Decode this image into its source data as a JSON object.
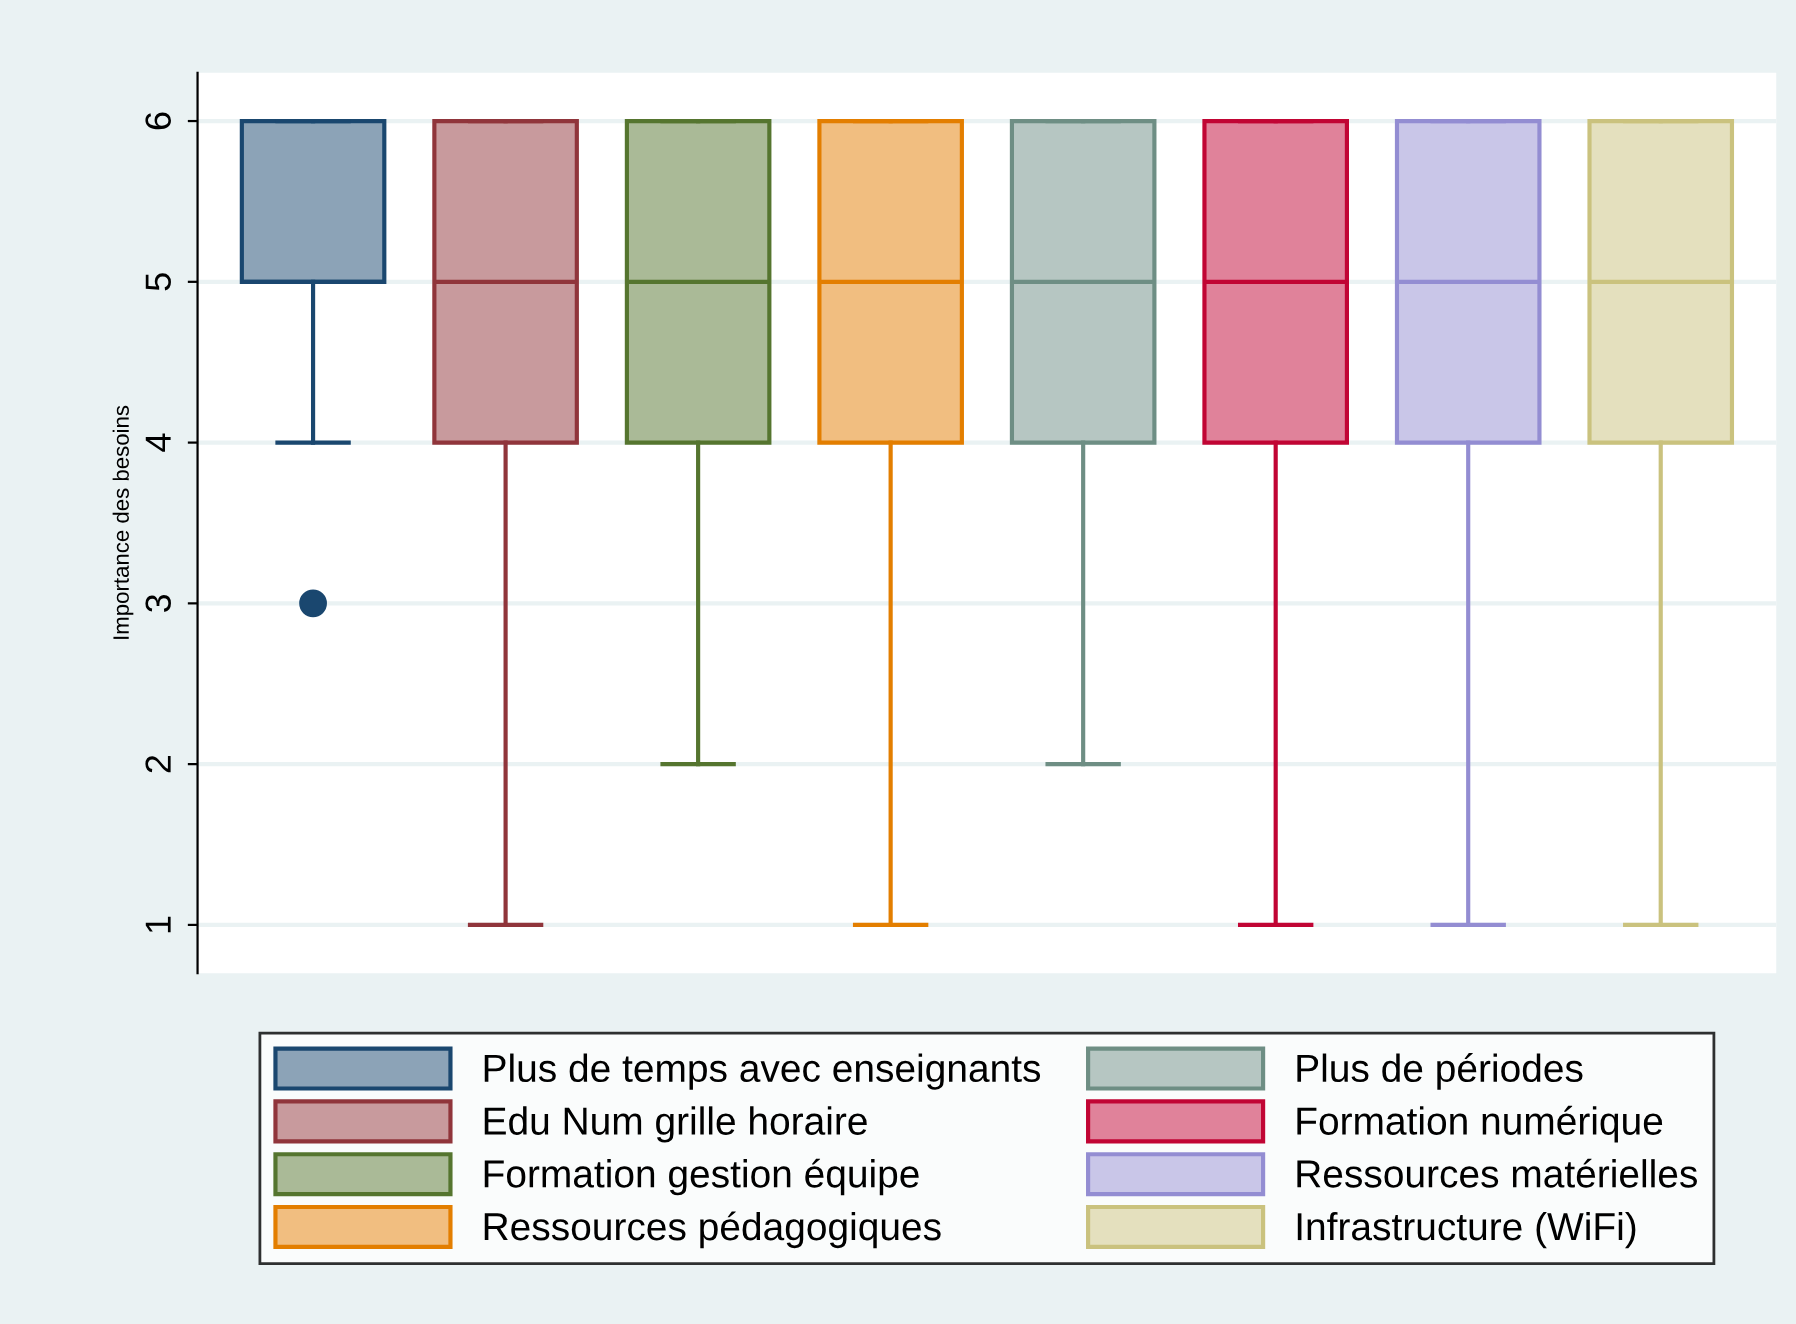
{
  "chart_data": {
    "type": "box",
    "ylabel": "Importance des besoins",
    "categories": [
      null,
      null,
      null,
      null,
      null,
      null,
      null,
      null
    ],
    "ylim": [
      0.7,
      6.3
    ],
    "yticks": [
      1,
      2,
      3,
      4,
      5,
      6
    ],
    "grid": "y",
    "legend": "bottom",
    "series": [
      {
        "name": "Plus de temps avec enseignants",
        "color": "#1a476f",
        "boxes": [
          {
            "low": 4,
            "q1": 5,
            "median": 5,
            "q3": 6,
            "high": 6,
            "outliers": [
              3
            ]
          },
          null,
          null,
          null,
          null,
          null,
          null,
          null
        ]
      },
      {
        "name": "Edu Num grille horaire",
        "color": "#90353b",
        "boxes": [
          null,
          {
            "low": 1,
            "q1": 4,
            "median": 5,
            "q3": 6,
            "high": 6
          },
          null,
          null,
          null,
          null,
          null,
          null
        ]
      },
      {
        "name": "Formation gestion équipe",
        "color": "#55752f",
        "boxes": [
          null,
          null,
          {
            "low": 2,
            "q1": 4,
            "median": 5,
            "q3": 6,
            "high": 6
          },
          null,
          null,
          null,
          null,
          null
        ]
      },
      {
        "name": "Ressources pédagogiques",
        "color": "#e37e00",
        "boxes": [
          null,
          null,
          null,
          {
            "low": 1,
            "q1": 4,
            "median": 5,
            "q3": 6,
            "high": 6
          },
          null,
          null,
          null,
          null
        ]
      },
      {
        "name": "Plus de périodes",
        "color": "#6e8e84",
        "boxes": [
          null,
          null,
          null,
          null,
          {
            "low": 2,
            "q1": 4,
            "median": 5,
            "q3": 6,
            "high": 6
          },
          null,
          null,
          null
        ]
      },
      {
        "name": "Formation numérique",
        "color": "#c10534",
        "boxes": [
          null,
          null,
          null,
          null,
          null,
          {
            "low": 1,
            "q1": 4,
            "median": 5,
            "q3": 6,
            "high": 6
          },
          null,
          null
        ]
      },
      {
        "name": "Ressources matérielles",
        "color": "#938dd2",
        "boxes": [
          null,
          null,
          null,
          null,
          null,
          null,
          {
            "low": 1,
            "q1": 4,
            "median": 5,
            "q3": 6,
            "high": 6
          },
          null
        ]
      },
      {
        "name": "Infrastructure (WiFi)",
        "color": "#cac27e",
        "boxes": [
          null,
          null,
          null,
          null,
          null,
          null,
          null,
          {
            "low": 1,
            "q1": 4,
            "median": 5,
            "q3": 6,
            "high": 6
          }
        ]
      }
    ]
  }
}
